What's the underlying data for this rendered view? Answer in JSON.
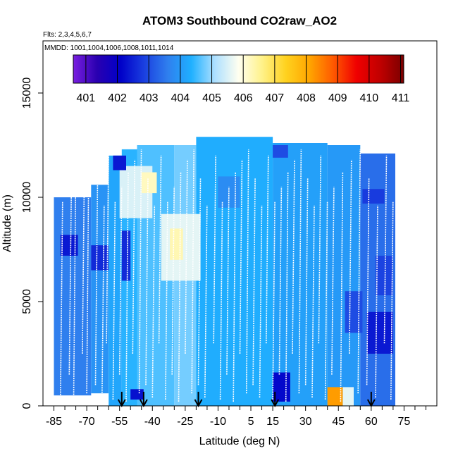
{
  "chart_data": {
    "type": "heatmap",
    "title": "ATOM3 Southbound CO2raw_AO2",
    "subtitle_flights": "Flts: 2,3,4,5,6,7",
    "subtitle_dates": "MMDD: 1001,1004,1006,1008,1011,1014",
    "xlabel": "Latitude (deg N)",
    "ylabel": "Altitude (m)",
    "xlim": [
      -90,
      90
    ],
    "ylim": [
      0,
      17500
    ],
    "x_ticks": [
      -85,
      -70,
      -55,
      -40,
      -25,
      -10,
      5,
      15,
      30,
      45,
      60,
      75
    ],
    "x_minor_ticks": [
      -80,
      -75,
      -65,
      -60,
      -50,
      -45,
      -35,
      -30,
      -20,
      -15,
      -5,
      0,
      10,
      20,
      25,
      35,
      40,
      50,
      55,
      65,
      70,
      80,
      85
    ],
    "y_ticks": [
      0,
      5000,
      10000,
      15000
    ],
    "colorbar": {
      "ticks": [
        "401",
        "402",
        "403",
        "404",
        "405",
        "406",
        "407",
        "408",
        "409",
        "410",
        "411"
      ],
      "min": 400.6,
      "max": 411.1,
      "colors": [
        "#7a1fe0",
        "#2a00b0",
        "#0000c8",
        "#1a3fe0",
        "#2f7fee",
        "#1fb0ff",
        "#aee0ff",
        "#fffff0",
        "#fff28a",
        "#ffd21f",
        "#ffa600",
        "#ff5a00",
        "#f00000",
        "#c00000",
        "#7a0000"
      ]
    },
    "flight_profiles_color": "#ffffff",
    "sonde_arrows_lat": [
      -54,
      -44,
      -19,
      16,
      60
    ],
    "field_regions": [
      {
        "lat": [
          -85,
          -68
        ],
        "alt": [
          500,
          10000
        ],
        "value": 403.6
      },
      {
        "lat": [
          -68,
          -60
        ],
        "alt": [
          600,
          10600
        ],
        "value": 403.9
      },
      {
        "lat": [
          -60,
          -54
        ],
        "alt": [
          0,
          12000
        ],
        "value": 404.2
      },
      {
        "lat": [
          -54,
          -47
        ],
        "alt": [
          0,
          12300
        ],
        "value": 404.4
      },
      {
        "lat": [
          -47,
          -30
        ],
        "alt": [
          0,
          12500
        ],
        "value": 404.6
      },
      {
        "lat": [
          -30,
          -20
        ],
        "alt": [
          0,
          12500
        ],
        "value": 404.8
      },
      {
        "lat": [
          -20,
          15
        ],
        "alt": [
          0,
          12900
        ],
        "value": 404.3
      },
      {
        "lat": [
          15,
          40
        ],
        "alt": [
          0,
          12600
        ],
        "value": 404.1
      },
      {
        "lat": [
          40,
          55
        ],
        "alt": [
          0,
          12500
        ],
        "value": 404.0
      },
      {
        "lat": [
          55,
          71
        ],
        "alt": [
          0,
          12100
        ],
        "value": 403.4
      },
      {
        "lat": [
          -55,
          -40
        ],
        "alt": [
          9000,
          11500
        ],
        "value": 405.5
      },
      {
        "lat": [
          -45,
          -38
        ],
        "alt": [
          10200,
          11200
        ],
        "value": 406.2
      },
      {
        "lat": [
          -36,
          -18
        ],
        "alt": [
          6000,
          9200
        ],
        "value": 405.6
      },
      {
        "lat": [
          -32,
          -26
        ],
        "alt": [
          7000,
          8500
        ],
        "value": 406.3
      },
      {
        "lat": [
          -68,
          -60
        ],
        "alt": [
          6500,
          7700
        ],
        "value": 402.6
      },
      {
        "lat": [
          -82,
          -74
        ],
        "alt": [
          7200,
          8200
        ],
        "value": 402.4
      },
      {
        "lat": [
          -54,
          -50
        ],
        "alt": [
          6000,
          8400
        ],
        "value": 402.6
      },
      {
        "lat": [
          -58,
          -52
        ],
        "alt": [
          11300,
          12000
        ],
        "value": 402.4
      },
      {
        "lat": [
          -50,
          -44
        ],
        "alt": [
          300,
          800
        ],
        "value": 402.3
      },
      {
        "lat": [
          40,
          47
        ],
        "alt": [
          0,
          900
        ],
        "value": 408.2
      },
      {
        "lat": [
          47,
          52
        ],
        "alt": [
          0,
          900
        ],
        "value": 405.6
      },
      {
        "lat": [
          15,
          23
        ],
        "alt": [
          200,
          1600
        ],
        "value": 402.2
      },
      {
        "lat": [
          58,
          70
        ],
        "alt": [
          2500,
          4500
        ],
        "value": 402.4
      },
      {
        "lat": [
          56,
          66
        ],
        "alt": [
          9700,
          10400
        ],
        "value": 402.8
      },
      {
        "lat": [
          62,
          70
        ],
        "alt": [
          5300,
          7200
        ],
        "value": 402.9
      },
      {
        "lat": [
          48,
          56
        ],
        "alt": [
          3500,
          5500
        ],
        "value": 403.0
      },
      {
        "lat": [
          15,
          22
        ],
        "alt": [
          11900,
          12500
        ],
        "value": 403.0
      },
      {
        "lat": [
          -10,
          0
        ],
        "alt": [
          9500,
          11000
        ],
        "value": 403.8
      }
    ],
    "profiles_lat": [
      -82,
      -78,
      -76,
      -72,
      -70,
      -66,
      -63,
      -61,
      -58,
      -55,
      -52,
      -49,
      -46,
      -43,
      -40,
      -37,
      -34,
      -31,
      -28,
      -25,
      -22,
      -19,
      -16,
      -12,
      -9,
      -6,
      -3,
      0,
      3,
      6,
      9,
      12,
      15,
      18,
      21,
      24,
      27,
      30,
      33,
      36,
      39,
      42,
      46,
      50,
      54,
      58,
      62,
      66,
      69
    ]
  }
}
